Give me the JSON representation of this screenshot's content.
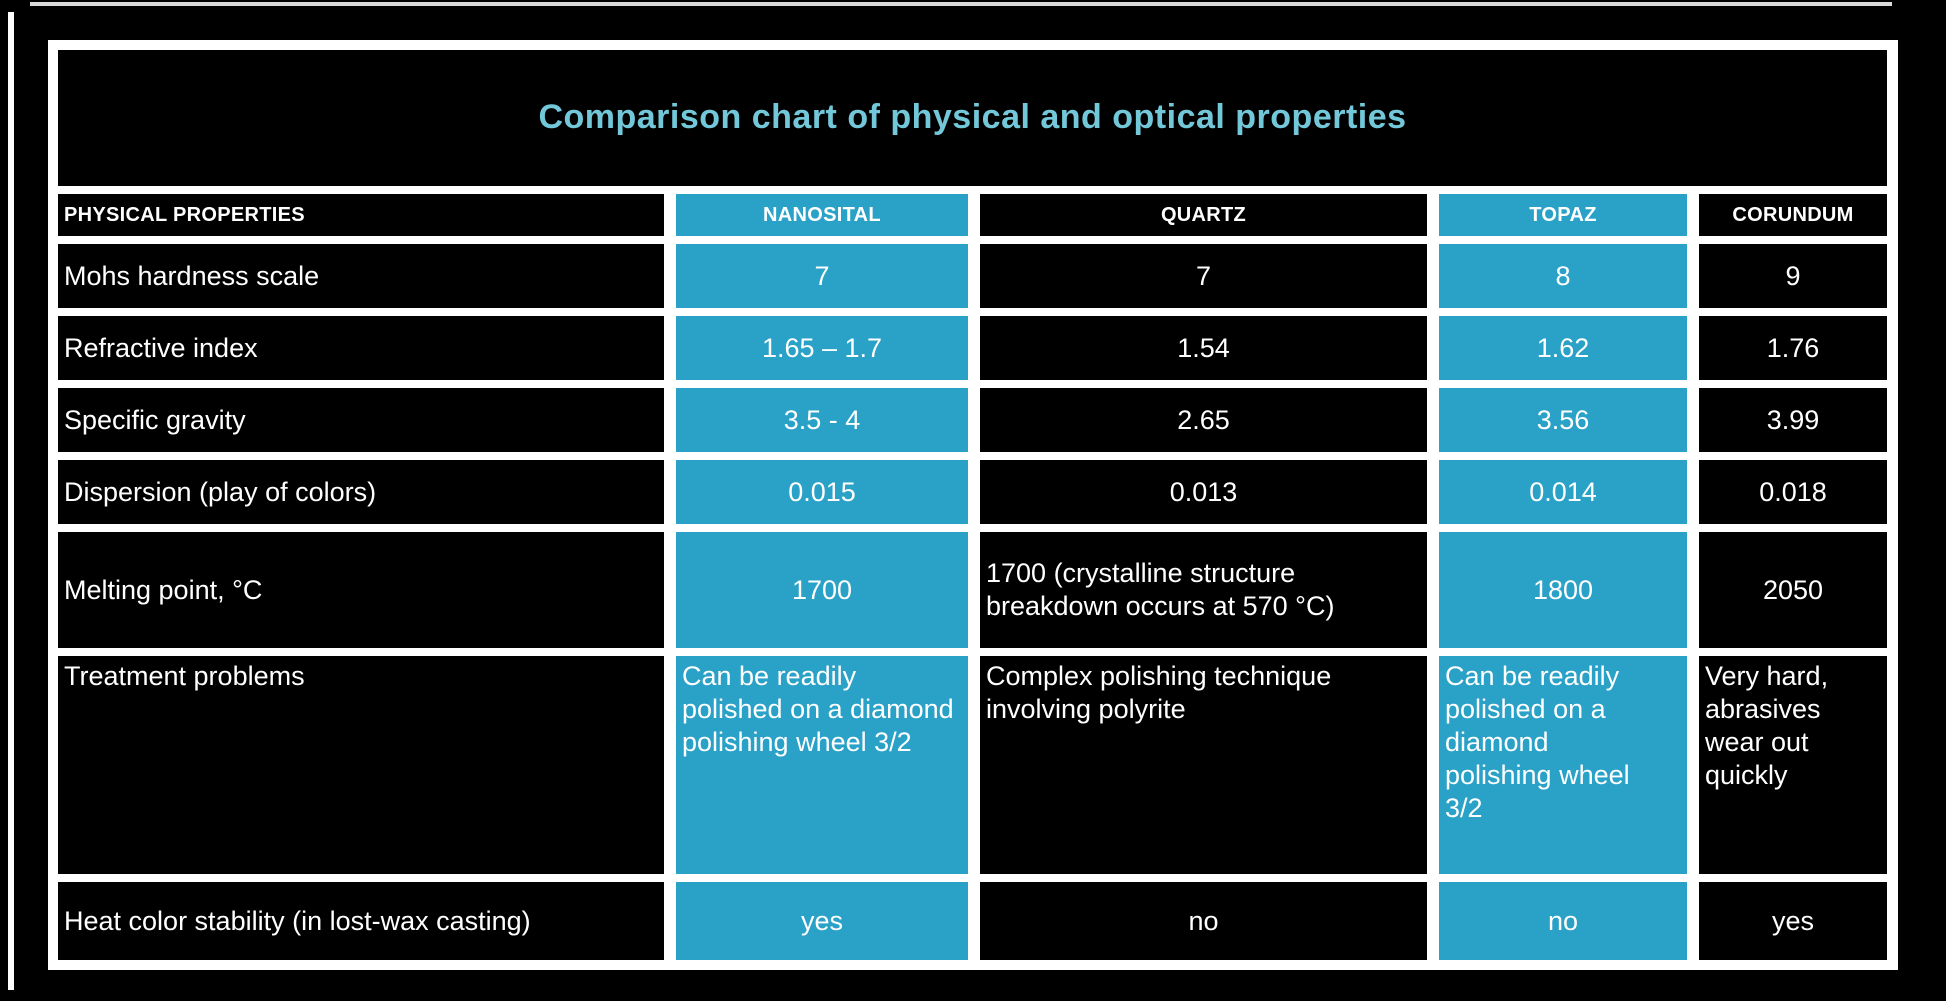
{
  "title": "Comparison chart of physical and optical properties",
  "colors": {
    "page_bg": "#000000",
    "cell_bg": "#000000",
    "accent": "#2aa1c7",
    "grid_line": "#ffffff",
    "title_text": "#72c8d9",
    "cell_text": "#ffffff"
  },
  "table": {
    "columns": [
      "PHYSICAL PROPERTIES",
      "NANOSITAL",
      "QUARTZ",
      "TOPAZ",
      "CORUNDUM"
    ],
    "highlighted_columns": [
      "NANOSITAL",
      "TOPAZ"
    ],
    "rows": [
      {
        "property": "Mohs hardness scale",
        "values": [
          "7",
          "7",
          "8",
          "9"
        ]
      },
      {
        "property": "Refractive index",
        "values": [
          "1.65 – 1.7",
          "1.54",
          "1.62",
          "1.76"
        ]
      },
      {
        "property": "Specific gravity",
        "values": [
          "3.5 - 4",
          "2.65",
          "3.56",
          "3.99"
        ]
      },
      {
        "property": "Dispersion (play of colors)",
        "values": [
          "0.015",
          "0.013",
          "0.014",
          "0.018"
        ]
      },
      {
        "property": "Melting point, °C",
        "values": [
          "1700",
          "1700 (crystalline structure breakdown occurs at 570 °C)",
          "1800",
          "2050"
        ]
      },
      {
        "property": "Treatment problems",
        "values": [
          "Can be readily polished on a diamond polishing wheel 3/2",
          "Complex polishing technique involving polyrite",
          "Can be readily polished on a diamond polishing wheel 3/2",
          "Very hard, abrasives wear out quickly"
        ]
      },
      {
        "property": "Heat color stability (in lost-wax casting)",
        "values": [
          "yes",
          "no",
          "no",
          "yes"
        ]
      }
    ]
  },
  "chart_data": {
    "type": "table",
    "title": "Comparison chart of physical and optical properties",
    "categories": [
      "NANOSITAL",
      "QUARTZ",
      "TOPAZ",
      "CORUNDUM"
    ],
    "series": [
      {
        "name": "Mohs hardness scale",
        "values": [
          7,
          7,
          8,
          9
        ]
      },
      {
        "name": "Refractive index",
        "values": [
          "1.65 – 1.7",
          1.54,
          1.62,
          1.76
        ]
      },
      {
        "name": "Specific gravity",
        "values": [
          "3.5 - 4",
          2.65,
          3.56,
          3.99
        ]
      },
      {
        "name": "Dispersion (play of colors)",
        "values": [
          0.015,
          0.013,
          0.014,
          0.018
        ]
      },
      {
        "name": "Melting point, °C",
        "values": [
          1700,
          "1700 (crystalline structure breakdown occurs at 570 °C)",
          1800,
          2050
        ]
      },
      {
        "name": "Treatment problems",
        "values": [
          "Can be readily polished on a diamond polishing wheel 3/2",
          "Complex polishing technique involving polyrite",
          "Can be readily polished on a diamond polishing wheel 3/2",
          "Very hard, abrasives wear out quickly"
        ]
      },
      {
        "name": "Heat color stability (in lost-wax casting)",
        "values": [
          "yes",
          "no",
          "no",
          "yes"
        ]
      }
    ],
    "legend_position": "none",
    "grid": true
  }
}
